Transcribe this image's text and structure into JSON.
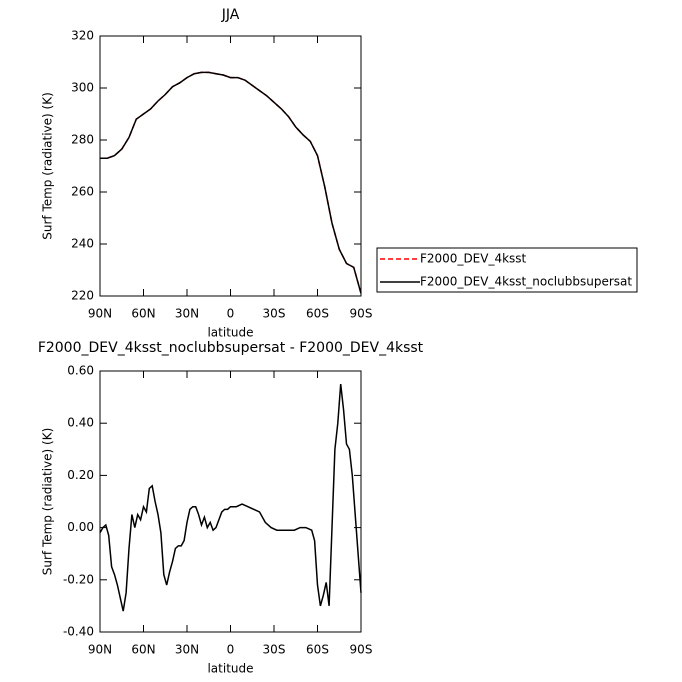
{
  "chart_data": [
    {
      "type": "line",
      "title": "JJA",
      "x_label": "latitude",
      "y_label": "Surf Temp (radiative) (K)",
      "xlim": [
        90,
        -90
      ],
      "ylim": [
        220,
        320
      ],
      "xticks": [
        {
          "value": 90,
          "label": "90N"
        },
        {
          "value": 60,
          "label": "60N"
        },
        {
          "value": 30,
          "label": "30N"
        },
        0,
        {
          "value": -30,
          "label": "30S"
        },
        {
          "value": -60,
          "label": "60S"
        },
        {
          "value": -90,
          "label": "90S"
        }
      ],
      "yticks": [
        220,
        240,
        260,
        280,
        300,
        320
      ],
      "x": [
        90,
        85,
        80,
        75,
        70,
        65,
        60,
        55,
        50,
        45,
        40,
        35,
        30,
        25,
        20,
        15,
        10,
        5,
        0,
        -5,
        -10,
        -15,
        -20,
        -25,
        -30,
        -35,
        -40,
        -45,
        -50,
        -55,
        -60,
        -65,
        -70,
        -75,
        -80,
        -85,
        -90
      ],
      "series": [
        {
          "name": "F2000_DEV_4ksst",
          "color": "#ff0000",
          "dash": true,
          "values": [
            273,
            273,
            274,
            276.5,
            281,
            288,
            290,
            292,
            295,
            297.5,
            300.5,
            302,
            304,
            305.5,
            306,
            306,
            305.5,
            305,
            304,
            304,
            303,
            301,
            299,
            297,
            294.5,
            292,
            289,
            285,
            282,
            279.5,
            274,
            262,
            248,
            238,
            232.5,
            231,
            221
          ]
        },
        {
          "name": "F2000_DEV_4ksst_noclubbsupersat",
          "color": "#000000",
          "dash": false,
          "values": [
            273,
            273,
            274,
            276.5,
            281,
            288,
            290,
            292,
            295,
            297.5,
            300.5,
            302,
            304,
            305.5,
            306,
            306,
            305.5,
            305,
            304,
            304,
            303,
            301,
            299,
            297,
            294.5,
            292,
            289,
            285,
            282,
            279.5,
            274,
            262,
            248,
            238,
            232.5,
            231,
            221
          ]
        }
      ]
    },
    {
      "type": "line",
      "title": "F2000_DEV_4ksst_noclubbsupersat - F2000_DEV_4ksst",
      "x_label": "latitude",
      "y_label": "Surf Temp (radiative) (K)",
      "xlim": [
        90,
        -90
      ],
      "ylim": [
        -0.4,
        0.6
      ],
      "xticks": [
        {
          "value": 90,
          "label": "90N"
        },
        {
          "value": 60,
          "label": "60N"
        },
        {
          "value": 30,
          "label": "30N"
        },
        0,
        {
          "value": -30,
          "label": "30S"
        },
        {
          "value": -60,
          "label": "60S"
        },
        {
          "value": -90,
          "label": "90S"
        }
      ],
      "yticks": [
        {
          "value": -0.4,
          "label": "-0.40"
        },
        {
          "value": -0.2,
          "label": "-0.20"
        },
        {
          "value": 0,
          "label": "0.00"
        },
        {
          "value": 0.2,
          "label": "0.20"
        },
        {
          "value": 0.4,
          "label": "0.40"
        },
        {
          "value": 0.6,
          "label": "0.60"
        }
      ],
      "x": [
        90,
        88,
        86,
        84,
        82,
        80,
        78,
        76,
        74,
        72,
        70,
        68,
        66,
        64,
        62,
        60,
        58,
        56,
        54,
        52,
        50,
        48,
        46,
        44,
        42,
        40,
        38,
        36,
        34,
        32,
        30,
        28,
        26,
        24,
        22,
        20,
        18,
        16,
        14,
        12,
        10,
        8,
        6,
        4,
        2,
        0,
        -4,
        -8,
        -12,
        -16,
        -20,
        -24,
        -28,
        -32,
        -36,
        -40,
        -44,
        -48,
        -52,
        -56,
        -58,
        -60,
        -62,
        -64,
        -66,
        -68,
        -70,
        -72,
        -74,
        -76,
        -78,
        -80,
        -82,
        -84,
        -86,
        -88,
        -90
      ],
      "color": "#000000",
      "values": [
        -0.02,
        0.0,
        0.01,
        -0.03,
        -0.15,
        -0.18,
        -0.22,
        -0.27,
        -0.32,
        -0.25,
        -0.08,
        0.05,
        0.0,
        0.05,
        0.03,
        0.08,
        0.06,
        0.15,
        0.16,
        0.1,
        0.05,
        -0.02,
        -0.18,
        -0.22,
        -0.17,
        -0.13,
        -0.08,
        -0.07,
        -0.07,
        -0.05,
        0.02,
        0.07,
        0.08,
        0.08,
        0.05,
        0.01,
        0.04,
        0.0,
        0.02,
        -0.01,
        0.0,
        0.03,
        0.06,
        0.07,
        0.07,
        0.08,
        0.08,
        0.09,
        0.08,
        0.07,
        0.06,
        0.02,
        0.0,
        -0.01,
        -0.01,
        -0.01,
        -0.01,
        0.0,
        0.0,
        -0.01,
        -0.05,
        -0.22,
        -0.3,
        -0.26,
        -0.21,
        -0.3,
        0.0,
        0.3,
        0.4,
        0.55,
        0.45,
        0.32,
        0.3,
        0.2,
        0.05,
        -0.1,
        -0.25
      ]
    }
  ]
}
